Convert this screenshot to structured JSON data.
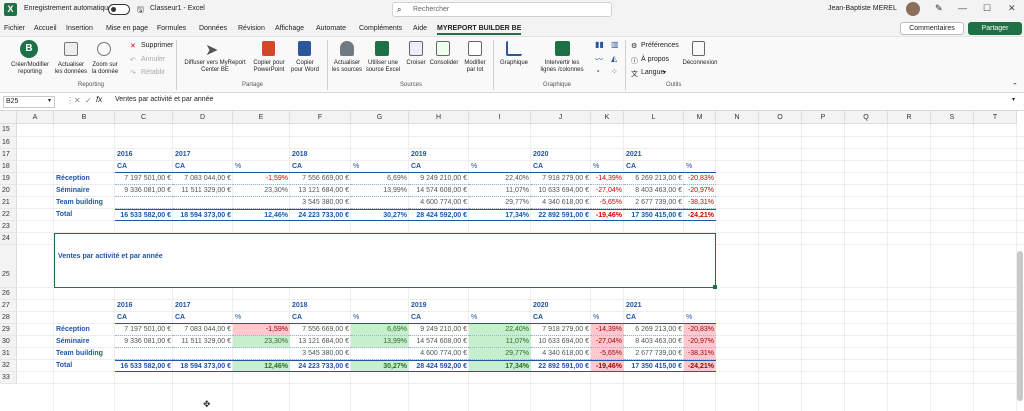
{
  "window": {
    "autosave_label": "Enregistrement automatique",
    "filename": "Classeur1  -  Excel",
    "search_placeholder": "Rechercher",
    "user_name": "Jean-Baptiste MEREL"
  },
  "menu": {
    "items": [
      "Fichier",
      "Accueil",
      "Insertion",
      "Mise en page",
      "Formules",
      "Données",
      "Révision",
      "Affichage",
      "Automate",
      "Compléments",
      "Aide",
      "MYREPORT BUILDER BE"
    ],
    "comments": "Commentaires",
    "share": "Partager"
  },
  "ribbon": {
    "buttons": [
      "Créer/Modifier reporting",
      "Actualiser les données",
      "Zoom sur la donnée",
      "Supprimer",
      "Annuler",
      "Rétablir",
      "Diffuser vers MyReport Center BE",
      "Copier pour PowerPoint",
      "Copier pour Word",
      "Actualiser les sources",
      "Utiliser une source Excel",
      "Croiser",
      "Consolider",
      "Modifier par lot",
      "Graphique",
      "Intervertir les lignes /colonnes",
      "Préférences",
      "À propos",
      "Langue",
      "Déconnexion"
    ],
    "groups": [
      "Reporting",
      "Partage",
      "Sources",
      "Graphique",
      "Outils"
    ]
  },
  "formula": {
    "namebox": "B25",
    "content": "Ventes par activité et par année"
  },
  "grid": {
    "columns": [
      "A",
      "B",
      "C",
      "D",
      "E",
      "F",
      "G",
      "H",
      "I",
      "J",
      "K",
      "L",
      "M",
      "N",
      "O",
      "P",
      "Q",
      "R",
      "S",
      "T"
    ],
    "rows": [
      "15",
      "16",
      "17",
      "18",
      "19",
      "20",
      "21",
      "22",
      "23",
      "24",
      "25",
      "26",
      "27",
      "28",
      "29",
      "30",
      "31",
      "32",
      "33"
    ],
    "merged_title": "Ventes par activité et par année",
    "years": [
      "2016",
      "2017",
      "2018",
      "2019",
      "2020",
      "2021"
    ],
    "ca_label": "CA",
    "pct_label": "%",
    "table": [
      {
        "label": "Réception",
        "values": [
          "7 197 501,00 €",
          "7 083 044,00 €",
          "-1,59%",
          "7 556 669,00 €",
          "6,69%",
          "9 249 210,00 €",
          "22,40%",
          "7 918 279,00 €",
          "-14,39%",
          "6 269 213,00 €",
          "-20,83%"
        ]
      },
      {
        "label": "Séminaire",
        "values": [
          "9 336 081,00 €",
          "11 511 329,00 €",
          "23,30%",
          "13 121 684,00 €",
          "13,99%",
          "14 574 608,00 €",
          "11,07%",
          "10 633 694,00 €",
          "-27,04%",
          "8 403 463,00 €",
          "-20,97%"
        ]
      },
      {
        "label": "Team building",
        "values": [
          "",
          "",
          "",
          "3 545 380,00 €",
          "",
          "4 600 774,00 €",
          "29,77%",
          "4 340 618,00 €",
          "-5,65%",
          "2 677 739,00 €",
          "-38,31%"
        ]
      },
      {
        "label": "Total",
        "values": [
          "16 533 582,00 €",
          "18 594 373,00 €",
          "12,46%",
          "24 223 733,00 €",
          "30,27%",
          "28 424 592,00 €",
          "17,34%",
          "22 892 591,00 €",
          "-19,46%",
          "17 350 415,00 €",
          "-24,21%"
        ]
      }
    ]
  },
  "colors": {
    "green": "#1e7145",
    "header_blue": "#2155a6",
    "pos": "#c6efce",
    "neg": "#ffc7ce"
  }
}
